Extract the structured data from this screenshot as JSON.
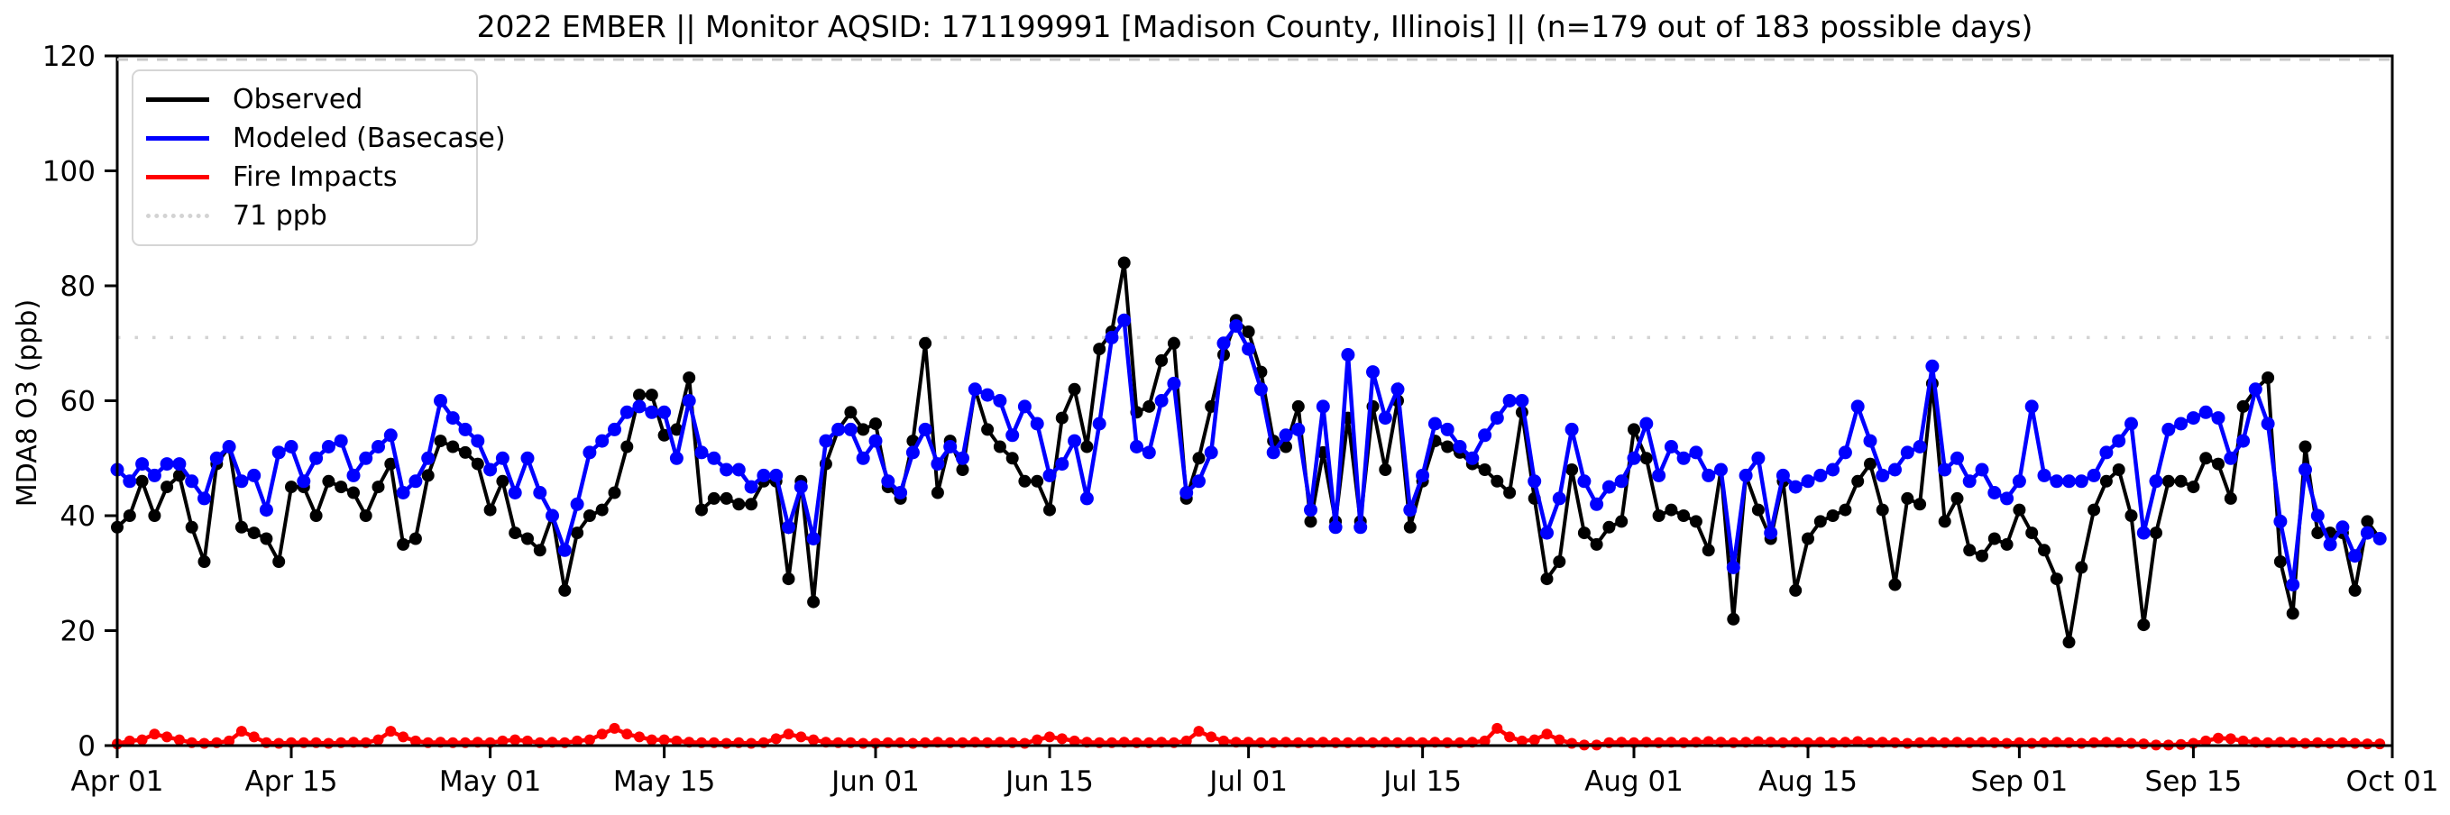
{
  "title": "2022 EMBER || Monitor AQSID: 171199991 [Madison County, Illinois] || (n=179 out of 183 possible days)",
  "y_axis": {
    "label": "MDA8 O3 (ppb)",
    "ticks": [
      0,
      20,
      40,
      60,
      80,
      100,
      120
    ],
    "min": 0,
    "max": 120
  },
  "x_axis": {
    "tick_labels": [
      "Apr 01",
      "Apr 15",
      "May 01",
      "May 15",
      "Jun 01",
      "Jun 15",
      "Jul 01",
      "Jul 15",
      "Aug 01",
      "Aug 15",
      "Sep 01",
      "Sep 15",
      "Oct 01"
    ],
    "tick_days": [
      0,
      14,
      30,
      44,
      61,
      75,
      91,
      105,
      122,
      136,
      153,
      167,
      183
    ]
  },
  "legend": [
    {
      "label": "Observed",
      "color": "#000000",
      "style": "solid"
    },
    {
      "label": "Modeled (Basecase)",
      "color": "#0000ff",
      "style": "solid"
    },
    {
      "label": "Fire Impacts",
      "color": "#ff0000",
      "style": "solid"
    },
    {
      "label": "71 ppb",
      "color": "#d3d3d3",
      "style": "dotted"
    }
  ],
  "chart_data": {
    "type": "line",
    "title": "2022 EMBER || Monitor AQSID: 171199991 [Madison County, Illinois] || (n=179 out of 183 possible days)",
    "xlabel": "",
    "ylabel": "MDA8 O3 (ppb)",
    "ylim": [
      0,
      120
    ],
    "x_range_days": 183,
    "x_start": "Apr 01",
    "x_end": "Oct 01",
    "grid": false,
    "legend_position": "upper left",
    "reference_lines": [
      {
        "label": "71 ppb",
        "value": 71,
        "color": "#d3d3d3",
        "style": "dotted"
      },
      {
        "label": "",
        "value": 120,
        "color": "#c8c8c8",
        "style": "dashed"
      }
    ],
    "series": [
      {
        "name": "Observed",
        "color": "#000000",
        "marker": "circle",
        "values": [
          38,
          40,
          46,
          40,
          45,
          47,
          38,
          32,
          49,
          52,
          38,
          37,
          36,
          32,
          45,
          45,
          40,
          46,
          45,
          44,
          40,
          45,
          49,
          35,
          36,
          47,
          53,
          52,
          51,
          49,
          41,
          46,
          37,
          36,
          34,
          40,
          27,
          37,
          40,
          41,
          44,
          52,
          61,
          61,
          54,
          55,
          64,
          41,
          43,
          43,
          42,
          42,
          46,
          46,
          29,
          46,
          25,
          49,
          55,
          58,
          55,
          56,
          45,
          43,
          53,
          70,
          44,
          53,
          48,
          62,
          55,
          52,
          50,
          46,
          46,
          41,
          57,
          62,
          52,
          69,
          72,
          84,
          58,
          59,
          67,
          70,
          43,
          50,
          59,
          68,
          74,
          72,
          65,
          53,
          52,
          59,
          39,
          51,
          39,
          57,
          39,
          59,
          48,
          60,
          38,
          46,
          53,
          52,
          51,
          49,
          48,
          46,
          44,
          58,
          43,
          29,
          32,
          48,
          37,
          35,
          38,
          39,
          55,
          50,
          40,
          41,
          40,
          39,
          34,
          48,
          22,
          47,
          41,
          36,
          46,
          27,
          36,
          39,
          40,
          41,
          46,
          49,
          41,
          28,
          43,
          42,
          63,
          39,
          43,
          34,
          33,
          36,
          35,
          41,
          37,
          34,
          29,
          18,
          31,
          41,
          46,
          48,
          40,
          21,
          37,
          46,
          46,
          45,
          50,
          49,
          43,
          59,
          62,
          64,
          32,
          23,
          52,
          37,
          37,
          37,
          27,
          39,
          36
        ]
      },
      {
        "name": "Modeled (Basecase)",
        "color": "#0000ff",
        "marker": "circle",
        "values": [
          48,
          46,
          49,
          47,
          49,
          49,
          46,
          43,
          50,
          52,
          46,
          47,
          41,
          51,
          52,
          46,
          50,
          52,
          53,
          47,
          50,
          52,
          54,
          44,
          46,
          50,
          60,
          57,
          55,
          53,
          48,
          50,
          44,
          50,
          44,
          40,
          34,
          42,
          51,
          53,
          55,
          58,
          59,
          58,
          58,
          50,
          60,
          51,
          50,
          48,
          48,
          45,
          47,
          47,
          38,
          45,
          36,
          53,
          55,
          55,
          50,
          53,
          46,
          44,
          51,
          55,
          49,
          52,
          50,
          62,
          61,
          60,
          54,
          59,
          56,
          47,
          49,
          53,
          43,
          56,
          71,
          74,
          52,
          51,
          60,
          63,
          44,
          46,
          51,
          70,
          73,
          69,
          62,
          51,
          54,
          55,
          41,
          59,
          38,
          68,
          38,
          65,
          57,
          62,
          41,
          47,
          56,
          55,
          52,
          50,
          54,
          57,
          60,
          60,
          46,
          37,
          43,
          55,
          46,
          42,
          45,
          46,
          50,
          56,
          47,
          52,
          50,
          51,
          47,
          48,
          31,
          47,
          50,
          37,
          47,
          45,
          46,
          47,
          48,
          51,
          59,
          53,
          47,
          48,
          51,
          52,
          66,
          48,
          50,
          46,
          48,
          44,
          43,
          46,
          59,
          47,
          46,
          46,
          46,
          47,
          51,
          53,
          56,
          37,
          46,
          55,
          56,
          57,
          58,
          57,
          50,
          53,
          62,
          56,
          39,
          28,
          48,
          40,
          35,
          38,
          33,
          37,
          36
        ]
      },
      {
        "name": "Fire Impacts",
        "color": "#ff0000",
        "marker": "circle",
        "values": [
          0.3,
          0.8,
          1,
          2,
          1.5,
          1,
          0.5,
          0.4,
          0.5,
          0.8,
          2.5,
          1.5,
          0.5,
          0.4,
          0.5,
          0.5,
          0.5,
          0.4,
          0.5,
          0.6,
          0.5,
          1,
          2.5,
          1.5,
          0.8,
          0.5,
          0.6,
          0.5,
          0.5,
          0.6,
          0.5,
          0.8,
          1,
          0.8,
          0.5,
          0.6,
          0.5,
          0.8,
          1,
          2,
          3,
          2,
          1.5,
          1,
          1,
          0.8,
          0.6,
          0.5,
          0.5,
          0.4,
          0.5,
          0.4,
          0.5,
          1.2,
          2,
          1.5,
          1,
          0.6,
          0.5,
          0.5,
          0.4,
          0.4,
          0.5,
          0.5,
          0.4,
          0.5,
          0.6,
          0.5,
          0.5,
          0.6,
          0.5,
          0.6,
          0.5,
          0.4,
          1,
          1.5,
          1.2,
          0.8,
          0.6,
          0.5,
          0.5,
          0.6,
          0.5,
          0.5,
          0.6,
          0.5,
          0.8,
          2.5,
          1.5,
          0.8,
          0.6,
          0.6,
          0.5,
          0.5,
          0.6,
          0.5,
          0.5,
          0.6,
          0.5,
          0.5,
          0.6,
          0.5,
          0.6,
          0.5,
          0.6,
          0.5,
          0.6,
          0.5,
          0.5,
          0.6,
          0.8,
          3,
          1.5,
          0.8,
          1,
          2,
          1,
          0.4,
          0.1,
          0.1,
          0.5,
          0.6,
          0.5,
          0.6,
          0.5,
          0.6,
          0.5,
          0.6,
          0.7,
          0.6,
          0.5,
          0.6,
          0.7,
          0.6,
          0.5,
          0.6,
          0.5,
          0.6,
          0.5,
          0.6,
          0.7,
          0.5,
          0.6,
          0.5,
          0.4,
          0.5,
          0.6,
          0.5,
          0.6,
          0.5,
          0.6,
          0.5,
          0.4,
          0.5,
          0.4,
          0.5,
          0.6,
          0.5,
          0.4,
          0.5,
          0.6,
          0.5,
          0.4,
          0.3,
          0.1,
          0.1,
          0.2,
          0.4,
          0.8,
          1.3,
          1.2,
          0.8,
          0.6,
          0.5,
          0.6,
          0.5,
          0.4,
          0.5,
          0.4,
          0.5,
          0.4,
          0.3,
          0.3
        ]
      }
    ]
  }
}
